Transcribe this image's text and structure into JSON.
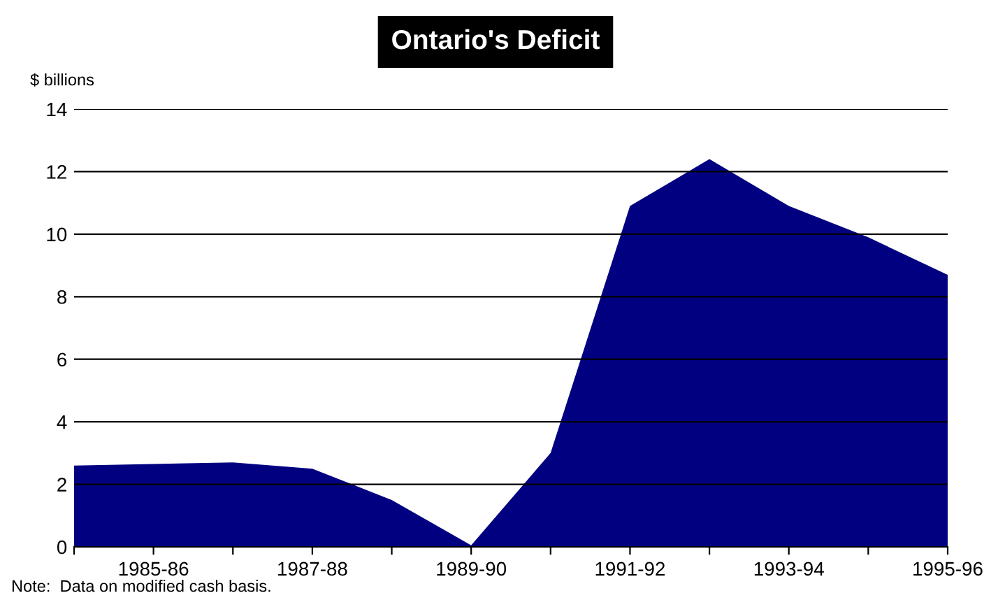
{
  "chart_data": {
    "type": "area",
    "title": "Ontario's Deficit",
    "ylabel": "$ billions",
    "categories": [
      null,
      "1985-86",
      null,
      "1987-88",
      null,
      "1989-90",
      null,
      "1991-92",
      null,
      "1993-94",
      null,
      "1995-96"
    ],
    "series": [
      {
        "color": "#000080",
        "values": [
          2.6,
          2.65,
          2.7,
          2.5,
          1.5,
          0.05,
          3.0,
          10.9,
          12.4,
          10.9,
          9.9,
          8.7
        ]
      }
    ],
    "ylim": [
      0,
      14
    ],
    "yticks": [
      0,
      2,
      4,
      6,
      8,
      10,
      12,
      14
    ],
    "grid": "y",
    "legend": false,
    "annotations": [
      "Note:  Data on modified cash basis."
    ]
  }
}
